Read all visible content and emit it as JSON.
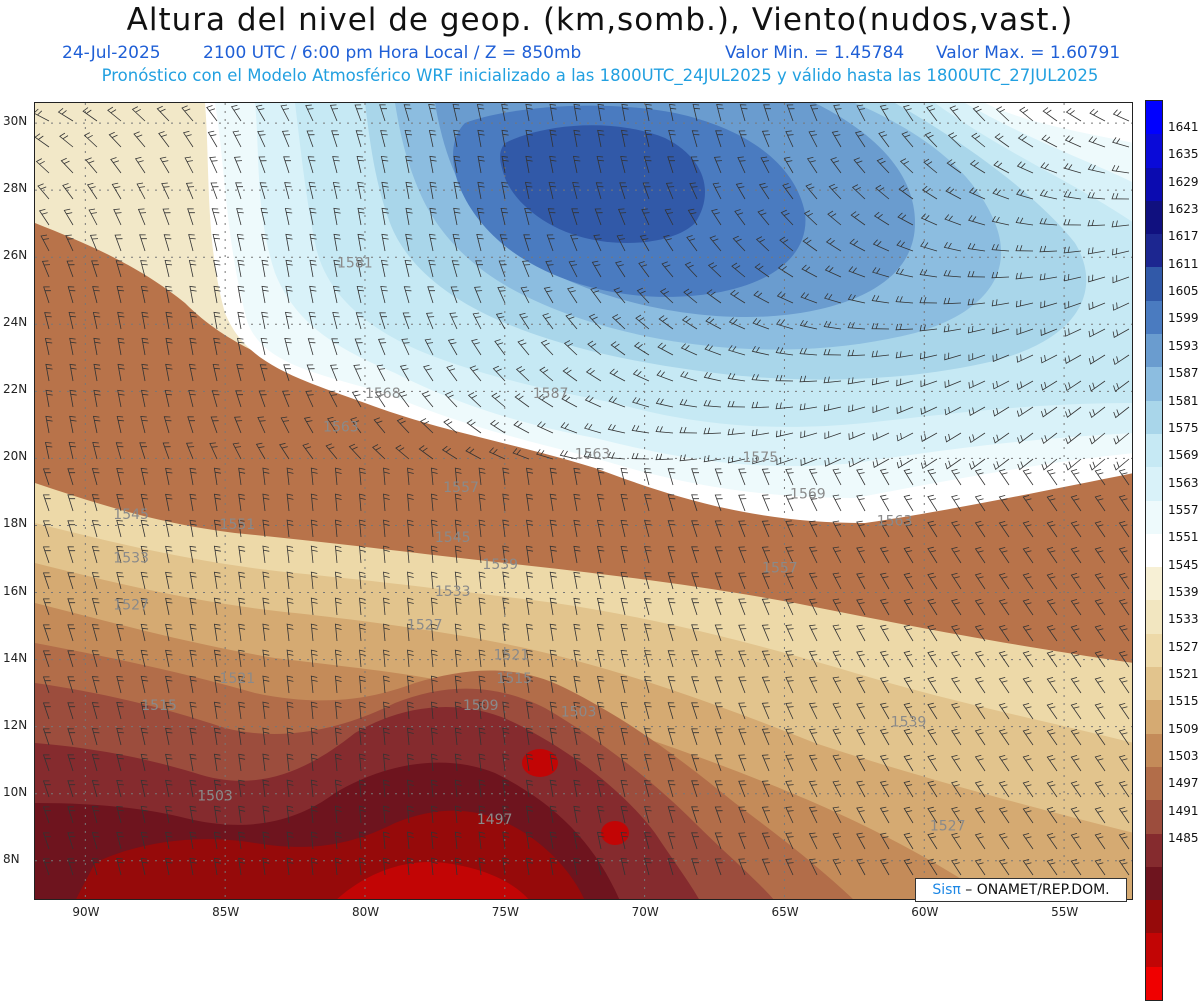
{
  "header": {
    "title": "Altura del nivel de geop. (km,somb.), Viento(nudos,vast.)",
    "date": "24-Jul-2025",
    "time_line": "2100 UTC / 6:00 pm Hora Local / Z = 850mb",
    "valor_min": "Valor Min. = 1.45784",
    "valor_max": "Valor Max. = 1.60791",
    "model_line": "Pronóstico con el Modelo Atmosférico WRF inicializado a las 1800UTC_24JUL2025 y válido hasta las 1800UTC_27JUL2025"
  },
  "map": {
    "lon_labels": [
      "90W",
      "85W",
      "80W",
      "75W",
      "70W",
      "65W",
      "60W",
      "55W"
    ],
    "lat_labels": [
      "30N",
      "28N",
      "26N",
      "24N",
      "22N",
      "20N",
      "18N",
      "16N",
      "14N",
      "12N",
      "10N",
      "8N"
    ],
    "lon_range": [
      -91.8,
      -52.5
    ],
    "lat_range": [
      6.8,
      30.6
    ],
    "contour_labels": [
      {
        "text": "1587",
        "lon": -74.0,
        "lat": 21.8
      },
      {
        "text": "1581",
        "lon": -81.0,
        "lat": 25.7
      },
      {
        "text": "1575",
        "lon": -66.5,
        "lat": 19.9
      },
      {
        "text": "1569",
        "lon": -64.8,
        "lat": 18.8
      },
      {
        "text": "1563",
        "lon": -61.7,
        "lat": 18.0
      },
      {
        "text": "1563",
        "lon": -81.5,
        "lat": 20.8
      },
      {
        "text": "1563",
        "lon": -72.5,
        "lat": 20.0
      },
      {
        "text": "1568",
        "lon": -80.0,
        "lat": 21.8
      },
      {
        "text": "1557",
        "lon": -77.2,
        "lat": 19.0
      },
      {
        "text": "1557",
        "lon": -65.8,
        "lat": 16.6
      },
      {
        "text": "1551",
        "lon": -85.2,
        "lat": 17.9
      },
      {
        "text": "1545",
        "lon": -77.5,
        "lat": 17.5
      },
      {
        "text": "1539",
        "lon": -75.8,
        "lat": 16.7
      },
      {
        "text": "1539",
        "lon": -61.2,
        "lat": 12.0
      },
      {
        "text": "1545",
        "lon": -89.0,
        "lat": 18.2
      },
      {
        "text": "1533",
        "lon": -77.5,
        "lat": 15.9
      },
      {
        "text": "1533",
        "lon": -89.0,
        "lat": 16.9
      },
      {
        "text": "1527",
        "lon": -78.5,
        "lat": 14.9
      },
      {
        "text": "1527",
        "lon": -89.0,
        "lat": 15.5
      },
      {
        "text": "1527",
        "lon": -59.8,
        "lat": 8.9
      },
      {
        "text": "1521",
        "lon": -75.4,
        "lat": 14.0
      },
      {
        "text": "1521",
        "lon": -85.2,
        "lat": 13.3
      },
      {
        "text": "1515",
        "lon": -75.3,
        "lat": 13.3
      },
      {
        "text": "1515",
        "lon": -88.0,
        "lat": 12.5
      },
      {
        "text": "1509",
        "lon": -76.5,
        "lat": 12.5
      },
      {
        "text": "1503",
        "lon": -73.0,
        "lat": 12.3
      },
      {
        "text": "1503",
        "lon": -86.0,
        "lat": 9.8
      },
      {
        "text": "1497",
        "lon": -76.0,
        "lat": 9.1
      }
    ]
  },
  "colorbar": {
    "labels": [
      "1641",
      "1635",
      "1629",
      "1623",
      "1617",
      "1611",
      "1605",
      "1599",
      "1593",
      "1587",
      "1581",
      "1575",
      "1569",
      "1563",
      "1557",
      "1551",
      "1545",
      "1539",
      "1533",
      "1527",
      "1521",
      "1515",
      "1509",
      "1503",
      "1497",
      "1491",
      "1485"
    ],
    "colors": [
      "#0000ff",
      "#0a0ad8",
      "#0b0bb0",
      "#10107f",
      "#1c2690",
      "#3159a8",
      "#4a7bc0",
      "#6a9ccf",
      "#8cbde0",
      "#a9d6ea",
      "#c6e9f4",
      "#d9f2f9",
      "#eefafc",
      "#ffffff",
      "#f7f0d5",
      "#f2e6c0",
      "#edd9a8",
      "#e2c48d",
      "#d5aa72",
      "#c48b59",
      "#b26d49",
      "#9c4d3d",
      "#852b2e",
      "#6e141e",
      "#960a0a",
      "#c20505",
      "#f00000"
    ]
  },
  "credit": {
    "logo": "Sisπ",
    "text": " – ONAMET/REP.DOM."
  }
}
